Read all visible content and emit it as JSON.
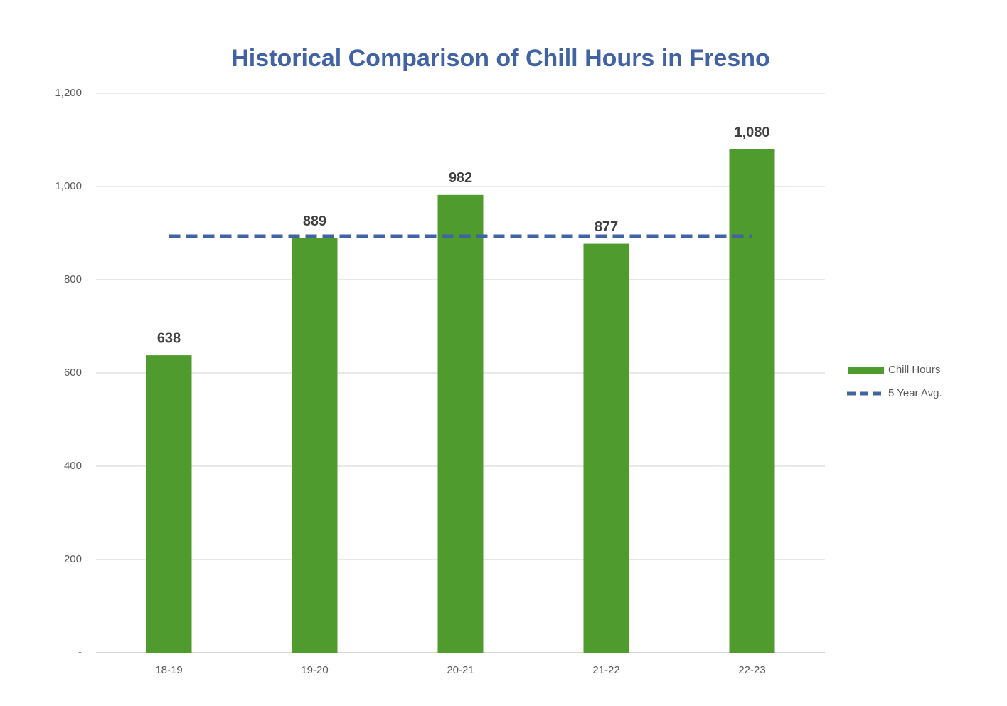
{
  "chart_data": {
    "type": "bar",
    "title": "Historical Comparison of Chill Hours in Fresno",
    "categories": [
      "18-19",
      "19-20",
      "20-21",
      "21-22",
      "22-23"
    ],
    "series": [
      {
        "name": "Chill Hours",
        "type": "bar",
        "color": "#4f9b2d",
        "values": [
          638,
          889,
          982,
          877,
          1080
        ],
        "value_labels": [
          "638",
          "889",
          "982",
          "877",
          "1,080"
        ]
      },
      {
        "name": "5 Year Avg.",
        "type": "line",
        "color": "#4163a4",
        "dashed": true,
        "values": [
          893.2,
          893.2,
          893.2,
          893.2,
          893.2
        ]
      }
    ],
    "ylim": [
      0,
      1200
    ],
    "yticks": [
      {
        "value": 0,
        "label": "-"
      },
      200,
      400,
      600,
      800,
      {
        "value": 1000,
        "label": "1,000"
      },
      {
        "value": 1200,
        "label": "1,200"
      }
    ],
    "grid": true,
    "legend": "right"
  }
}
